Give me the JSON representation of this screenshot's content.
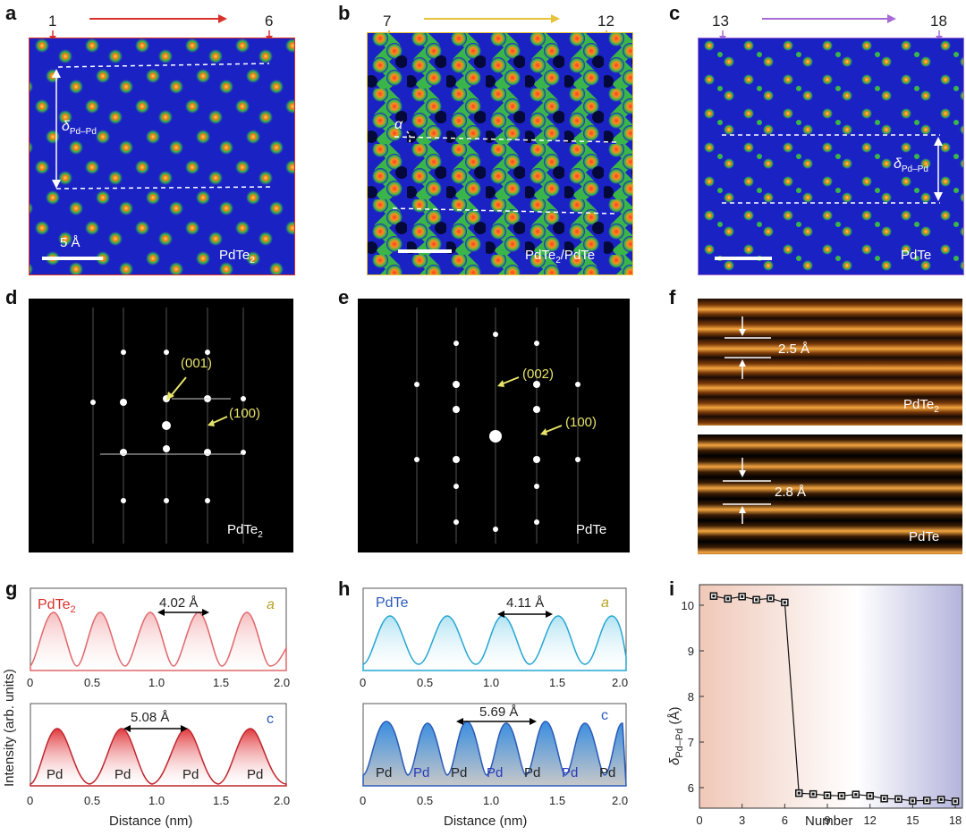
{
  "panels": {
    "a": {
      "label": "a",
      "start": "1",
      "end": "6",
      "formula": "PdTe",
      "sub": "2",
      "scale": "5 Å",
      "delta": "δ",
      "delta_sub": "Pd–Pd"
    },
    "b": {
      "label": "b",
      "start": "7",
      "end": "12",
      "formula": "PdTe",
      "sub": "2",
      "suffix": "/PdTe",
      "alpha": "α"
    },
    "c": {
      "label": "c",
      "start": "13",
      "end": "18",
      "formula": "PdTe",
      "delta": "δ",
      "delta_sub": "Pd–Pd"
    },
    "d": {
      "label": "d",
      "spot1": "(001)",
      "spot2": "(100)",
      "formula": "PdTe",
      "sub": "2"
    },
    "e": {
      "label": "e",
      "spot1": "(002)",
      "spot2": "(100)",
      "formula": "PdTe"
    },
    "f": {
      "label": "f",
      "top_spacing": "2.5 Å",
      "top_formula": "PdTe",
      "top_sub": "2",
      "bottom_spacing": "2.8 Å",
      "bottom_formula": "PdTe"
    },
    "g": {
      "label": "g",
      "title": "PdTe",
      "sub": "2",
      "top_tag": "a",
      "bottom_tag": "c",
      "top_dist": "4.02 Å",
      "bottom_dist": "5.08 Å",
      "atoms": [
        "Pd",
        "Pd",
        "Pd",
        "Pd"
      ],
      "xticks": [
        "0",
        "0.5",
        "1.0",
        "1.5",
        "2.0"
      ],
      "xlabel": "Distance (nm)",
      "ylabel": "Intensity (arb. units)"
    },
    "h": {
      "label": "h",
      "title": "PdTe",
      "top_tag": "a",
      "bottom_tag": "c",
      "top_dist": "4.11 Å",
      "bottom_dist": "5.69 Å",
      "atoms": [
        "Pd",
        "Pd",
        "Pd",
        "Pd",
        "Pd",
        "Pd",
        "Pd"
      ],
      "xticks": [
        "0",
        "0.5",
        "1.0",
        "1.5",
        "2.0"
      ],
      "xlabel": "Distance (nm)"
    },
    "i": {
      "label": "i",
      "xlabel": "Number",
      "ylabel_delta": "δ",
      "ylabel_sub": "Pd–Pd",
      "ylabel_unit": " (Å)",
      "xticks": [
        "0",
        "3",
        "6",
        "9",
        "12",
        "15",
        "18"
      ],
      "yticks": [
        "6",
        "7",
        "8",
        "9",
        "10"
      ]
    }
  },
  "chart_data": [
    {
      "type": "line",
      "title": "",
      "xlabel": "Number",
      "ylabel": "δPd–Pd (Å)",
      "x": [
        1,
        2,
        3,
        4,
        5,
        6,
        7,
        8,
        9,
        10,
        11,
        12,
        13,
        14,
        15,
        16,
        17,
        18
      ],
      "values": [
        10.2,
        10.14,
        10.19,
        10.12,
        10.15,
        10.06,
        5.88,
        5.86,
        5.83,
        5.82,
        5.85,
        5.82,
        5.76,
        5.75,
        5.71,
        5.72,
        5.74,
        5.7
      ],
      "xlim": [
        0,
        18.5
      ],
      "ylim": [
        5.55,
        10.45
      ],
      "xticks": [
        0,
        3,
        6,
        9,
        12,
        15,
        18
      ],
      "yticks": [
        6,
        7,
        8,
        9,
        10
      ]
    }
  ],
  "colors": {
    "red": "#d9302c",
    "yellow": "#e8c23a",
    "purple": "#a56cd6",
    "pink": "#e0676b",
    "teal": "#26a6d1",
    "darkred": "#c0252d",
    "blue": "#2a5ab8"
  }
}
